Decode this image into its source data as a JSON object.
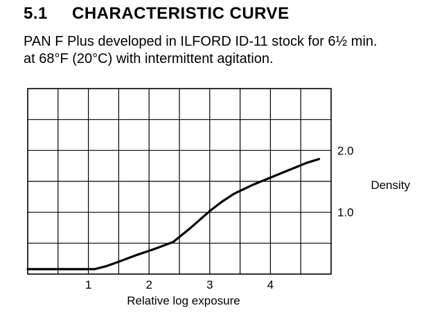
{
  "section": {
    "number": "5.1",
    "title": "CHARACTERISTIC CURVE"
  },
  "caption": {
    "line1": "PAN F Plus developed in ILFORD ID-11 stock for 6½ min.",
    "line2": "at 68°F (20°C) with intermittent agitation."
  },
  "chart_data": {
    "type": "line",
    "title": "",
    "xlabel": "Relative log exposure",
    "ylabel": "Density",
    "xlim": [
      0,
      5
    ],
    "ylim": [
      0,
      3
    ],
    "x_ticks": [
      1,
      2,
      3,
      4
    ],
    "x_tick_labels": [
      "1",
      "2",
      "3",
      "4"
    ],
    "y_ticks": [
      1.0,
      2.0
    ],
    "y_tick_labels": [
      "1.0",
      "2.0"
    ],
    "y_axis_side": "right",
    "grid": true,
    "grid_step_x": 0.5,
    "grid_step_y": 0.5,
    "series": [
      {
        "name": "",
        "color": "#000000",
        "x": [
          0,
          0.4,
          0.8,
          1.1,
          1.3,
          1.5,
          1.8,
          2.1,
          2.4,
          2.7,
          3.0,
          3.2,
          3.4,
          3.7,
          4.0,
          4.3,
          4.6,
          4.8
        ],
        "y": [
          0.08,
          0.08,
          0.08,
          0.08,
          0.13,
          0.2,
          0.31,
          0.41,
          0.52,
          0.76,
          1.02,
          1.17,
          1.3,
          1.44,
          1.56,
          1.68,
          1.8,
          1.86
        ]
      }
    ]
  }
}
